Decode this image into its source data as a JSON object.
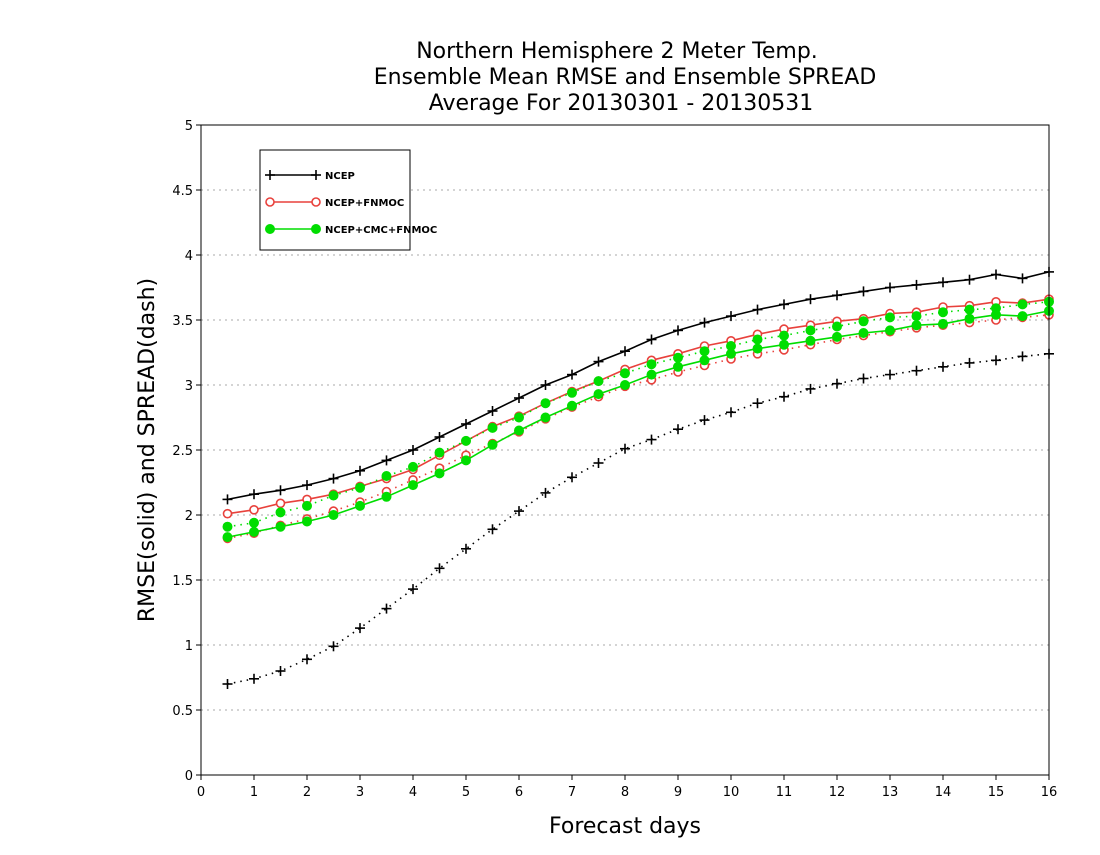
{
  "chart_data": {
    "type": "line",
    "title": [
      "Northern Hemisphere 2 Meter Temp.",
      "Ensemble Mean RMSE and Ensemble SPREAD",
      "Average For 20130301 - 20130531"
    ],
    "xlabel": "Forecast days",
    "ylabel": "RMSE(solid) and SPREAD(dash)",
    "xlim": [
      0,
      16
    ],
    "ylim": [
      0,
      5
    ],
    "xticks": [
      0,
      1,
      2,
      3,
      4,
      5,
      6,
      7,
      8,
      9,
      10,
      11,
      12,
      13,
      14,
      15,
      16
    ],
    "yticks": [
      0,
      0.5,
      1,
      1.5,
      2,
      2.5,
      3,
      3.5,
      4,
      4.5,
      5
    ],
    "grid": true,
    "legend_position": "top-left",
    "x": [
      0.5,
      1,
      1.5,
      2,
      2.5,
      3,
      3.5,
      4,
      4.5,
      5,
      5.5,
      6,
      6.5,
      7,
      7.5,
      8,
      8.5,
      9,
      9.5,
      10,
      10.5,
      11,
      11.5,
      12,
      12.5,
      13,
      13.5,
      14,
      14.5,
      15,
      15.5,
      16
    ],
    "series": [
      {
        "name": "NCEP",
        "color": "#000000",
        "marker": "plus",
        "style": "solid",
        "values": [
          2.12,
          2.16,
          2.19,
          2.23,
          2.28,
          2.34,
          2.42,
          2.5,
          2.6,
          2.7,
          2.8,
          2.9,
          3.0,
          3.08,
          3.18,
          3.26,
          3.35,
          3.42,
          3.48,
          3.53,
          3.58,
          3.62,
          3.66,
          3.69,
          3.72,
          3.75,
          3.77,
          3.79,
          3.81,
          3.85,
          3.82,
          3.87
        ]
      },
      {
        "name": "NCEP",
        "color": "#000000",
        "marker": "plus",
        "style": "dash",
        "values": [
          0.7,
          0.74,
          0.8,
          0.89,
          0.99,
          1.13,
          1.28,
          1.43,
          1.59,
          1.74,
          1.89,
          2.03,
          2.17,
          2.29,
          2.4,
          2.51,
          2.58,
          2.66,
          2.73,
          2.79,
          2.86,
          2.91,
          2.97,
          3.01,
          3.05,
          3.08,
          3.11,
          3.14,
          3.17,
          3.19,
          3.22,
          3.24
        ]
      },
      {
        "name": "NCEP+FNMOC",
        "color": "#e8413c",
        "marker": "open-circle",
        "style": "solid",
        "values": [
          2.01,
          2.04,
          2.09,
          2.12,
          2.16,
          2.22,
          2.28,
          2.35,
          2.46,
          2.57,
          2.68,
          2.76,
          2.86,
          2.95,
          3.03,
          3.12,
          3.19,
          3.24,
          3.3,
          3.34,
          3.39,
          3.43,
          3.46,
          3.49,
          3.51,
          3.55,
          3.56,
          3.6,
          3.61,
          3.64,
          3.63,
          3.66
        ]
      },
      {
        "name": "NCEP+FNMOC",
        "color": "#e8413c",
        "marker": "open-circle",
        "style": "dash",
        "values": [
          1.82,
          1.86,
          1.92,
          1.97,
          2.03,
          2.1,
          2.18,
          2.27,
          2.36,
          2.46,
          2.55,
          2.64,
          2.74,
          2.83,
          2.91,
          2.99,
          3.04,
          3.1,
          3.15,
          3.2,
          3.24,
          3.27,
          3.31,
          3.35,
          3.38,
          3.41,
          3.44,
          3.46,
          3.48,
          3.5,
          3.52,
          3.54
        ]
      },
      {
        "name": "NCEP+CMC+FNMOC",
        "color": "#00dd00",
        "marker": "filled-circle",
        "style": "solid",
        "values": [
          1.83,
          1.87,
          1.91,
          1.95,
          2.0,
          2.07,
          2.14,
          2.23,
          2.32,
          2.42,
          2.54,
          2.65,
          2.75,
          2.84,
          2.93,
          3.0,
          3.08,
          3.14,
          3.19,
          3.24,
          3.28,
          3.31,
          3.34,
          3.37,
          3.4,
          3.42,
          3.46,
          3.47,
          3.51,
          3.54,
          3.53,
          3.57
        ]
      },
      {
        "name": "NCEP+CMC+FNMOC",
        "color": "#00dd00",
        "marker": "filled-circle",
        "style": "dash",
        "values": [
          1.91,
          1.94,
          2.02,
          2.07,
          2.15,
          2.21,
          2.3,
          2.37,
          2.48,
          2.57,
          2.67,
          2.75,
          2.86,
          2.94,
          3.03,
          3.09,
          3.16,
          3.21,
          3.26,
          3.3,
          3.35,
          3.38,
          3.42,
          3.45,
          3.49,
          3.52,
          3.53,
          3.56,
          3.58,
          3.59,
          3.62,
          3.64
        ]
      }
    ]
  }
}
